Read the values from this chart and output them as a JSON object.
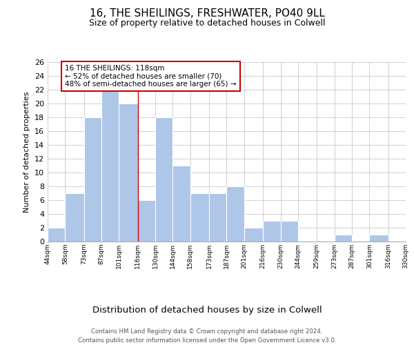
{
  "title": "16, THE SHEILINGS, FRESHWATER, PO40 9LL",
  "subtitle": "Size of property relative to detached houses in Colwell",
  "xlabel": "Distribution of detached houses by size in Colwell",
  "ylabel": "Number of detached properties",
  "bar_left_edges": [
    44,
    58,
    73,
    87,
    101,
    116,
    130,
    144,
    158,
    173,
    187,
    201,
    216,
    230,
    244,
    259,
    273,
    287,
    301,
    316
  ],
  "bar_widths": [
    14,
    15,
    14,
    14,
    15,
    14,
    14,
    14,
    15,
    14,
    14,
    15,
    14,
    14,
    15,
    14,
    14,
    14,
    15,
    14
  ],
  "bar_heights": [
    2,
    7,
    18,
    22,
    20,
    6,
    18,
    11,
    7,
    7,
    8,
    2,
    3,
    3,
    0,
    0,
    1,
    0,
    1,
    0
  ],
  "bar_color": "#aec6e8",
  "bar_edgecolor": "#aec6e8",
  "property_line_x": 116,
  "annotation_text": "16 THE SHEILINGS: 118sqm\n← 52% of detached houses are smaller (70)\n48% of semi-detached houses are larger (65) →",
  "annotation_box_edgecolor": "#cc0000",
  "annotation_box_facecolor": "#ffffff",
  "tick_labels": [
    "44sqm",
    "58sqm",
    "73sqm",
    "87sqm",
    "101sqm",
    "116sqm",
    "130sqm",
    "144sqm",
    "158sqm",
    "173sqm",
    "187sqm",
    "201sqm",
    "216sqm",
    "230sqm",
    "244sqm",
    "259sqm",
    "273sqm",
    "287sqm",
    "301sqm",
    "316sqm",
    "330sqm"
  ],
  "xlim": [
    44,
    330
  ],
  "ylim": [
    0,
    26
  ],
  "yticks": [
    0,
    2,
    4,
    6,
    8,
    10,
    12,
    14,
    16,
    18,
    20,
    22,
    24,
    26
  ],
  "footer_line1": "Contains HM Land Registry data © Crown copyright and database right 2024.",
  "footer_line2": "Contains public sector information licensed under the Open Government Licence v3.0.",
  "background_color": "#ffffff",
  "grid_color": "#d0d0d0"
}
